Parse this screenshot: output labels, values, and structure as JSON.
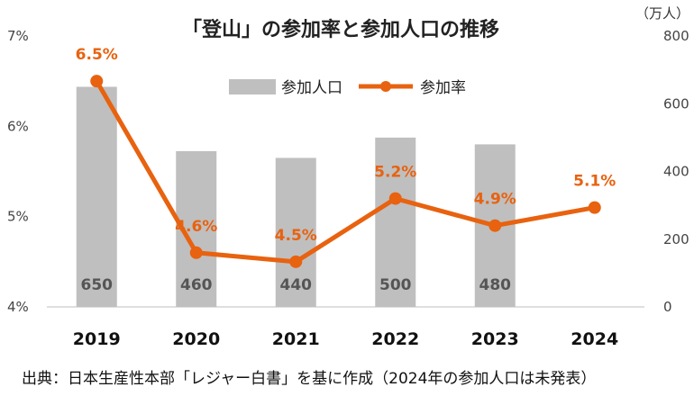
{
  "chart_data": {
    "type": "bar+line",
    "title": "「登山」の参加率と参加人口の推移",
    "categories": [
      "2019",
      "2020",
      "2021",
      "2022",
      "2023",
      "2024"
    ],
    "series": [
      {
        "name": "参加人口",
        "type": "bar",
        "axis": "right",
        "values": [
          650,
          460,
          440,
          500,
          480,
          null
        ],
        "labels": [
          "650",
          "460",
          "440",
          "500",
          "480",
          ""
        ]
      },
      {
        "name": "参加率",
        "type": "line",
        "axis": "left",
        "values": [
          6.5,
          4.6,
          4.5,
          5.2,
          4.9,
          5.1
        ],
        "labels": [
          "6.5%",
          "4.6%",
          "4.5%",
          "5.2%",
          "4.9%",
          "5.1%"
        ]
      }
    ],
    "y_left": {
      "min": 4,
      "max": 7,
      "ticks": [
        "4%",
        "5%",
        "6%",
        "7%"
      ]
    },
    "y_right": {
      "min": 0,
      "max": 800,
      "ticks": [
        "0",
        "200",
        "400",
        "600",
        "800"
      ],
      "unit": "（万人）"
    },
    "legend": "top-center",
    "grid": false,
    "colors": {
      "bar": "#bfbfbf",
      "line": "#e8620f"
    }
  },
  "source": "出典：日本生産性本部「レジャー白書」を基に作成（2024年の参加人口は未発表）"
}
